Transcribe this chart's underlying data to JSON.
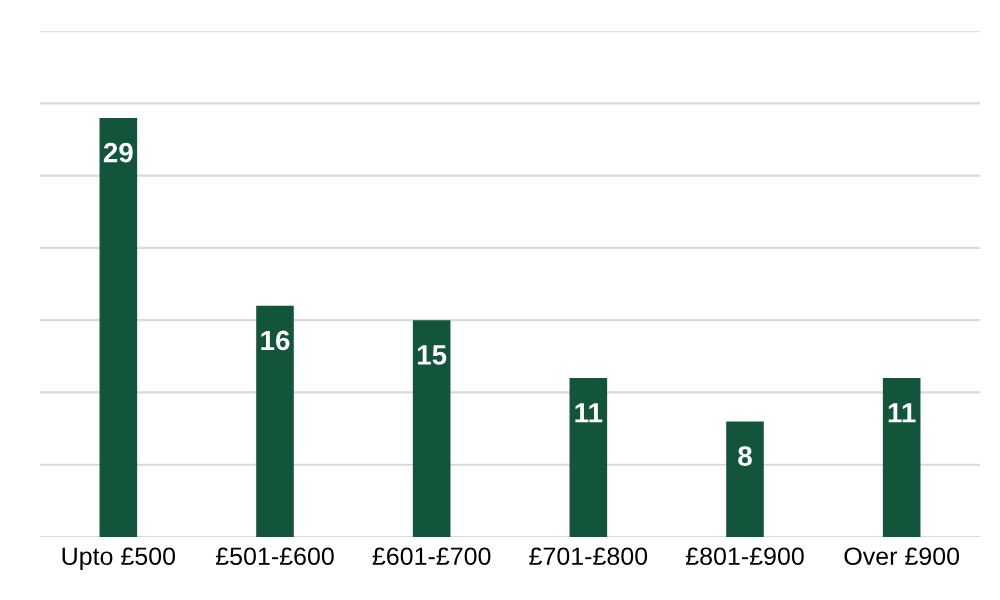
{
  "chart_data": {
    "type": "bar",
    "categories": [
      "Upto £500",
      "£501-£600",
      "£601-£700",
      "£701-£800",
      "£801-£900",
      "Over £900"
    ],
    "values": [
      29,
      16,
      15,
      11,
      8,
      11
    ],
    "color": "#12553a",
    "data_labels": true,
    "ylim": [
      0,
      35
    ],
    "yticks": [
      {
        "value": 0,
        "label": null
      },
      {
        "value": 5,
        "label": null
      },
      {
        "value": 10,
        "label": null
      },
      {
        "value": 15,
        "label": null
      },
      {
        "value": 20,
        "label": null
      },
      {
        "value": 25,
        "label": null
      },
      {
        "value": 30,
        "label": null
      },
      {
        "value": 35,
        "label": null
      }
    ],
    "tick_labels": "x",
    "grid": "y"
  }
}
